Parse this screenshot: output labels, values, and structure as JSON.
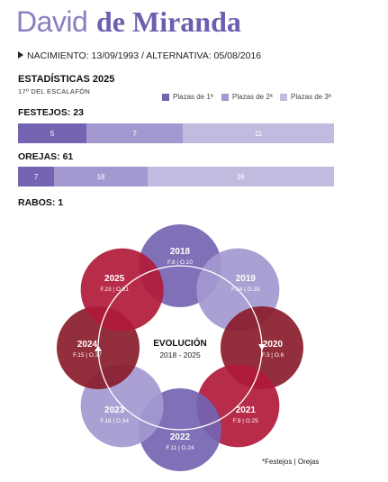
{
  "header": {
    "first_name": "David",
    "last_name": "de Miranda",
    "bio": "NACIMIENTO: 13/09/1993 / ALTERNATIVA: 05/08/2016"
  },
  "stats": {
    "title": "ESTADÍSTICAS 2025",
    "subtitle": "17º DEL ESCALAFÓN",
    "legend": [
      {
        "label": "Plazas de 1ª",
        "color": "#7464b2"
      },
      {
        "label": "Plazas de 2ª",
        "color": "#a398cf"
      },
      {
        "label": "Plazas de 3ª",
        "color": "#c2bbe0"
      }
    ],
    "festejos": {
      "label": "FESTEJOS: 23",
      "values": [
        5,
        7,
        11
      ],
      "total": 23
    },
    "orejas": {
      "label": "OREJAS: 61",
      "values": [
        7,
        18,
        36
      ],
      "total": 61
    },
    "rabos": {
      "label": "RABOS: 1"
    }
  },
  "evolution": {
    "title": "EVOLUCIÓN",
    "subtitle": "2018 - 2025",
    "years": [
      {
        "year": "2018",
        "stats": "F.8 | O.10",
        "color": "#7464b2"
      },
      {
        "year": "2019",
        "stats": "F.24 | O.39",
        "color": "#a398cf"
      },
      {
        "year": "2020",
        "stats": "F.3 | O.6",
        "color": "#8a1c2b"
      },
      {
        "year": "2021",
        "stats": "F.9 | O.25",
        "color": "#b01a3a"
      },
      {
        "year": "2022",
        "stats": "F.11 | O.24",
        "color": "#7464b2"
      },
      {
        "year": "2023",
        "stats": "F.16 | O.34",
        "color": "#a398cf"
      },
      {
        "year": "2024",
        "stats": "F.15 | O.37",
        "color": "#8a1c2b"
      },
      {
        "year": "2025",
        "stats": "F.23 | O.61",
        "color": "#b01a3a"
      }
    ],
    "footnote": "*Festejos | Orejas"
  }
}
